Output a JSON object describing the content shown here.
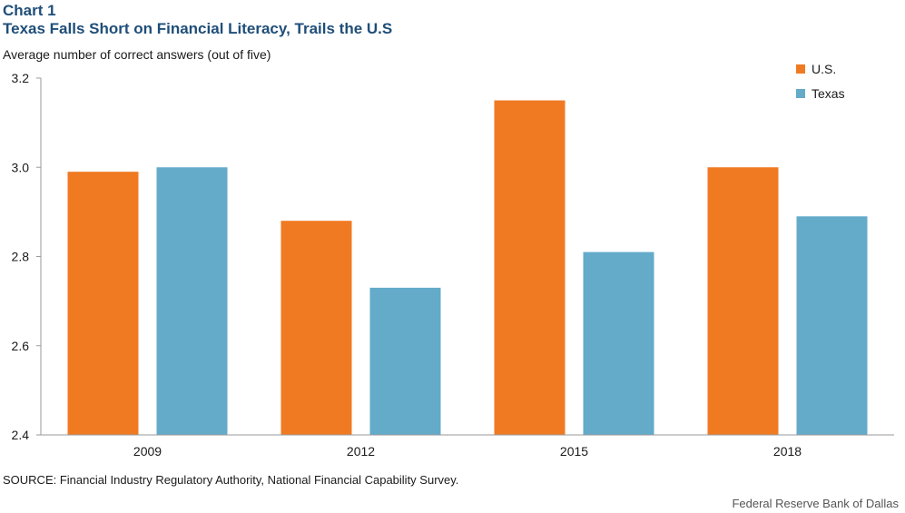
{
  "header": {
    "label": "Chart 1",
    "title": "Texas Falls Short on Financial Literacy, Trails the U.S"
  },
  "footer": {
    "source": "SOURCE: Financial Industry Regulatory Authority, National Financial Capability Survey.",
    "credit": "Federal Reserve Bank of Dallas"
  },
  "colors": {
    "us": "#f07a22",
    "texas": "#63abc9",
    "axis": "#9a9a9a"
  },
  "chart_data": {
    "type": "bar",
    "title": "Texas Falls Short on Financial Literacy, Trails the U.S",
    "ylabel": "Average number of correct answers (out of five)",
    "xlabel": "",
    "categories": [
      "2009",
      "2012",
      "2015",
      "2018"
    ],
    "series": [
      {
        "name": "U.S.",
        "values": [
          2.99,
          2.88,
          3.15,
          3.0
        ]
      },
      {
        "name": "Texas",
        "values": [
          3.0,
          2.73,
          2.81,
          2.89
        ]
      }
    ],
    "ylim": [
      2.4,
      3.2
    ],
    "yticks": [
      "2.4",
      "2.6",
      "2.8",
      "3.0",
      "3.2"
    ],
    "grid": false,
    "legend": "top-right"
  }
}
